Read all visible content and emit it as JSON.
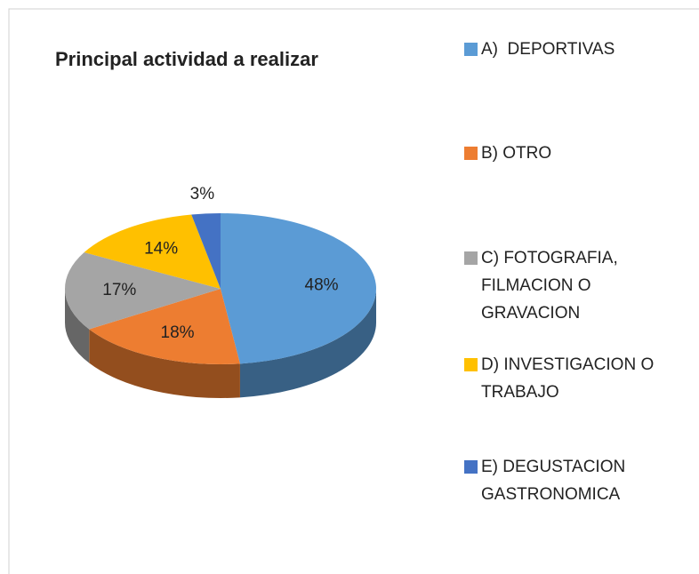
{
  "chart_data": {
    "type": "pie",
    "title": "Principal actividad a realizar",
    "categories": [
      "A)  DEPORTIVAS",
      "B) OTRO",
      "C) FOTOGRAFIA, FILMACION O GRAVACION",
      "D) INVESTIGACION O TRABAJO",
      "E) DEGUSTACION GASTRONOMICA"
    ],
    "values": [
      48,
      18,
      17,
      14,
      3
    ],
    "value_labels": [
      "48%",
      "18%",
      "17%",
      "14%",
      "3%"
    ],
    "colors": [
      "#5b9bd5",
      "#ed7d31",
      "#a5a5a5",
      "#ffc000",
      "#4472c4"
    ],
    "legend": "right"
  }
}
